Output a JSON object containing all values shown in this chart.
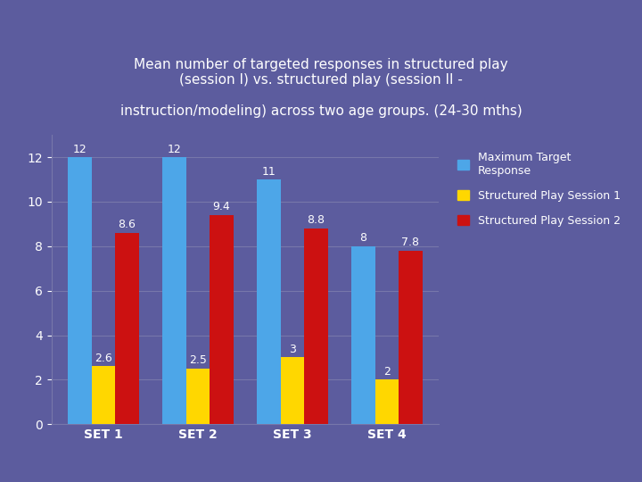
{
  "title_line1": "Mean number of targeted responses in structured play",
  "title_line2": "(session I) vs. structured play (session II -",
  "title_line3": "instruction/modeling) across two age groups. (24-30 mths)",
  "categories": [
    "SET 1",
    "SET 2",
    "SET 3",
    "SET 4"
  ],
  "max_target": [
    12,
    12,
    11,
    8
  ],
  "session1": [
    2.6,
    2.5,
    3,
    2
  ],
  "session2": [
    8.6,
    9.4,
    8.8,
    7.8
  ],
  "bar_colors": {
    "max_target": "#4DA6E8",
    "session1": "#FFD700",
    "session2": "#CC1111"
  },
  "legend_labels": [
    "Maximum Target\nResponse",
    "Structured Play Session 1",
    "Structured Play Session 2"
  ],
  "ylim": [
    0,
    13
  ],
  "yticks": [
    0,
    2,
    4,
    6,
    8,
    10,
    12
  ],
  "background_color": "#5C5C9E",
  "grid_color": "#7777AA",
  "text_color": "#FFFFFF",
  "bar_width": 0.25,
  "label_fontsize": 9,
  "title_fontsize": 11,
  "axis_label_fontsize": 10
}
